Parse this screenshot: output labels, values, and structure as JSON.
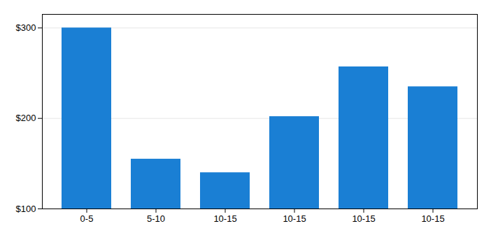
{
  "chart_data": {
    "type": "bar",
    "categories": [
      "0-5",
      "5-10",
      "10-15",
      "10-15",
      "10-15",
      "10-15"
    ],
    "values": [
      300,
      155,
      140,
      202,
      257,
      235
    ],
    "color": "#1a7fd4",
    "ylim": [
      100,
      315
    ],
    "yticks": [
      {
        "value": 100,
        "label": "$100"
      },
      {
        "value": 200,
        "label": "$200"
      },
      {
        "value": 300,
        "label": "$300"
      }
    ],
    "grid": true
  }
}
